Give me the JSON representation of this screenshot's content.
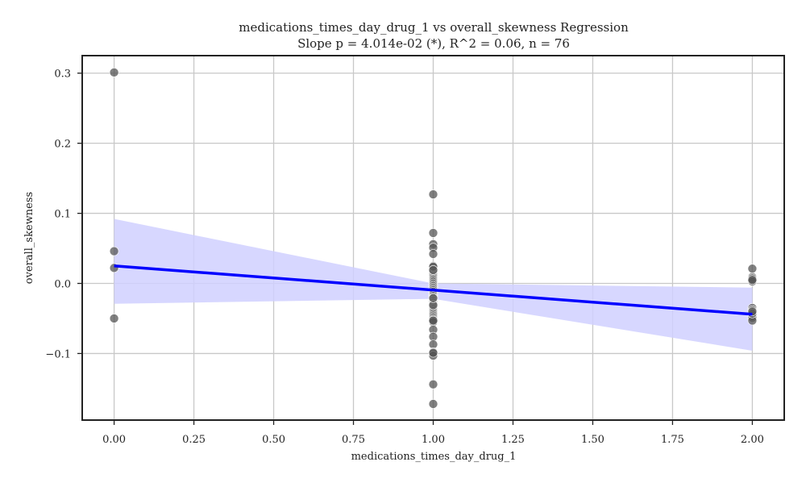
{
  "chart_data": {
    "type": "scatter",
    "title": "medications_times_day_drug_1 vs overall_skewness Regression",
    "subtitle": "Slope p = 4.014e-02 (*), R^2 = 0.06, n = 76",
    "xlabel": "medications_times_day_drug_1",
    "ylabel": "overall_skewness",
    "xlim": [
      -0.1,
      2.1
    ],
    "ylim": [
      -0.195,
      0.325
    ],
    "x_ticks": [
      0.0,
      0.25,
      0.5,
      0.75,
      1.0,
      1.25,
      1.5,
      1.75,
      2.0
    ],
    "x_tick_labels": [
      "0.00",
      "0.25",
      "0.50",
      "0.75",
      "1.00",
      "1.25",
      "1.50",
      "1.75",
      "2.00"
    ],
    "y_ticks": [
      -0.1,
      0.0,
      0.1,
      0.2,
      0.3
    ],
    "y_tick_labels": [
      "−0.1",
      "0.0",
      "0.1",
      "0.2",
      "0.3"
    ],
    "grid": true,
    "points": [
      {
        "x": 0,
        "y": 0.301
      },
      {
        "x": 0,
        "y": 0.046
      },
      {
        "x": 0,
        "y": 0.022
      },
      {
        "x": 0,
        "y": -0.05
      },
      {
        "x": 1,
        "y": 0.127
      },
      {
        "x": 1,
        "y": 0.072
      },
      {
        "x": 1,
        "y": 0.056
      },
      {
        "x": 1,
        "y": 0.051
      },
      {
        "x": 1,
        "y": 0.042
      },
      {
        "x": 1,
        "y": 0.025
      },
      {
        "x": 1,
        "y": 0.023
      },
      {
        "x": 1,
        "y": 0.02
      },
      {
        "x": 1,
        "y": 0.018
      },
      {
        "x": 1,
        "y": 0.015
      },
      {
        "x": 1,
        "y": 0.012
      },
      {
        "x": 1,
        "y": 0.01
      },
      {
        "x": 1,
        "y": 0.008
      },
      {
        "x": 1,
        "y": 0.006
      },
      {
        "x": 1,
        "y": 0.004
      },
      {
        "x": 1,
        "y": 0.002
      },
      {
        "x": 1,
        "y": 0.0
      },
      {
        "x": 1,
        "y": -0.002
      },
      {
        "x": 1,
        "y": -0.004
      },
      {
        "x": 1,
        "y": -0.006
      },
      {
        "x": 1,
        "y": -0.008
      },
      {
        "x": 1,
        "y": -0.01
      },
      {
        "x": 1,
        "y": -0.012
      },
      {
        "x": 1,
        "y": -0.014
      },
      {
        "x": 1,
        "y": -0.016
      },
      {
        "x": 1,
        "y": -0.018
      },
      {
        "x": 1,
        "y": -0.02
      },
      {
        "x": 1,
        "y": -0.022
      },
      {
        "x": 1,
        "y": -0.024
      },
      {
        "x": 1,
        "y": -0.026
      },
      {
        "x": 1,
        "y": -0.028
      },
      {
        "x": 1,
        "y": -0.03
      },
      {
        "x": 1,
        "y": -0.032
      },
      {
        "x": 1,
        "y": -0.034
      },
      {
        "x": 1,
        "y": -0.036
      },
      {
        "x": 1,
        "y": -0.038
      },
      {
        "x": 1,
        "y": -0.04
      },
      {
        "x": 1,
        "y": -0.042
      },
      {
        "x": 1,
        "y": -0.044
      },
      {
        "x": 1,
        "y": -0.046
      },
      {
        "x": 1,
        "y": -0.048
      },
      {
        "x": 1,
        "y": -0.05
      },
      {
        "x": 1,
        "y": -0.052
      },
      {
        "x": 1,
        "y": -0.055
      },
      {
        "x": 1,
        "y": -0.066
      },
      {
        "x": 1,
        "y": -0.076
      },
      {
        "x": 1,
        "y": -0.087
      },
      {
        "x": 1,
        "y": -0.098
      },
      {
        "x": 1,
        "y": -0.1
      },
      {
        "x": 1,
        "y": -0.103
      },
      {
        "x": 1,
        "y": -0.144
      },
      {
        "x": 1,
        "y": -0.172
      },
      {
        "x": 2,
        "y": 0.021
      },
      {
        "x": 2,
        "y": 0.009
      },
      {
        "x": 2,
        "y": 0.007
      },
      {
        "x": 2,
        "y": 0.003
      },
      {
        "x": 2,
        "y": -0.035
      },
      {
        "x": 2,
        "y": -0.038
      },
      {
        "x": 2,
        "y": -0.041
      },
      {
        "x": 2,
        "y": -0.044
      },
      {
        "x": 2,
        "y": -0.046
      },
      {
        "x": 2,
        "y": -0.049
      },
      {
        "x": 2,
        "y": -0.053
      },
      {
        "x": 2,
        "y": -0.043
      },
      {
        "x": 2,
        "y": -0.04
      },
      {
        "x": 2,
        "y": 0.005
      },
      {
        "x": 1,
        "y": 0.024
      },
      {
        "x": 1,
        "y": -0.031
      },
      {
        "x": 1,
        "y": -0.053
      },
      {
        "x": 1,
        "y": 0.019
      },
      {
        "x": 1,
        "y": -0.099
      },
      {
        "x": 1,
        "y": -0.021
      }
    ],
    "regression": {
      "x": [
        0,
        2
      ],
      "y": [
        0.025,
        -0.044
      ]
    },
    "confidence_band": {
      "x": [
        0,
        1,
        2
      ],
      "upper": [
        0.092,
        0.0,
        -0.006
      ],
      "lower": [
        -0.029,
        -0.022,
        -0.096
      ]
    },
    "colors": {
      "points": "#555555",
      "regression_line": "#0000ff",
      "confidence_band": "#d0d0ff",
      "grid": "#c8c8c8",
      "axes": "#222222"
    }
  }
}
